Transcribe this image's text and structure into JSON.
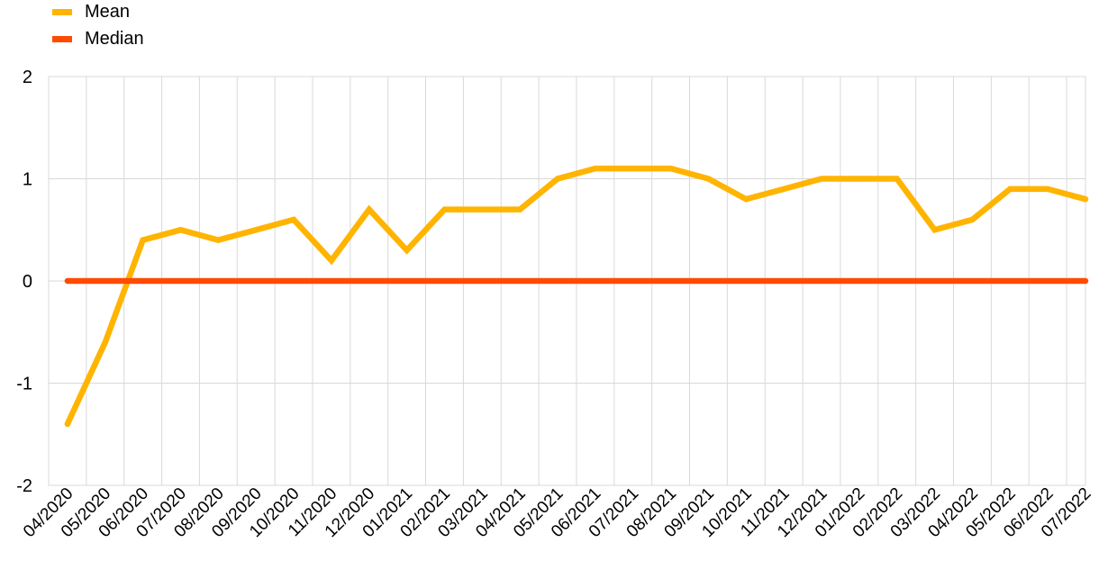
{
  "chart_data": {
    "type": "line",
    "title": "",
    "xlabel": "",
    "ylabel": "",
    "ylim": [
      -2,
      2
    ],
    "yticks": [
      "2",
      "1",
      "0",
      "-1",
      "-2"
    ],
    "grid": true,
    "legend_position": "top-left",
    "categories": [
      "04/2020",
      "05/2020",
      "06/2020",
      "07/2020",
      "08/2020",
      "09/2020",
      "10/2020",
      "11/2020",
      "12/2020",
      "01/2021",
      "02/2021",
      "03/2021",
      "04/2021",
      "05/2021",
      "06/2021",
      "07/2021",
      "08/2021",
      "09/2021",
      "10/2021",
      "11/2021",
      "12/2021",
      "01/2022",
      "02/2022",
      "03/2022",
      "04/2022",
      "05/2022",
      "06/2022",
      "07/2022"
    ],
    "series": [
      {
        "name": "Mean",
        "color": "#FFB400",
        "values": [
          -1.4,
          -0.6,
          0.4,
          0.5,
          0.4,
          0.5,
          0.6,
          0.2,
          0.7,
          0.3,
          0.7,
          0.7,
          0.7,
          1.0,
          1.1,
          1.1,
          1.1,
          1.0,
          0.8,
          0.9,
          1.0,
          1.0,
          1.0,
          0.5,
          0.6,
          0.9,
          0.9,
          0.8
        ]
      },
      {
        "name": "Median",
        "color": "#FF4B00",
        "values": [
          0,
          0,
          0,
          0,
          0,
          0,
          0,
          0,
          0,
          0,
          0,
          0,
          0,
          0,
          0,
          0,
          0,
          0,
          0,
          0,
          0,
          0,
          0,
          0,
          0,
          0,
          0,
          0
        ]
      }
    ]
  }
}
